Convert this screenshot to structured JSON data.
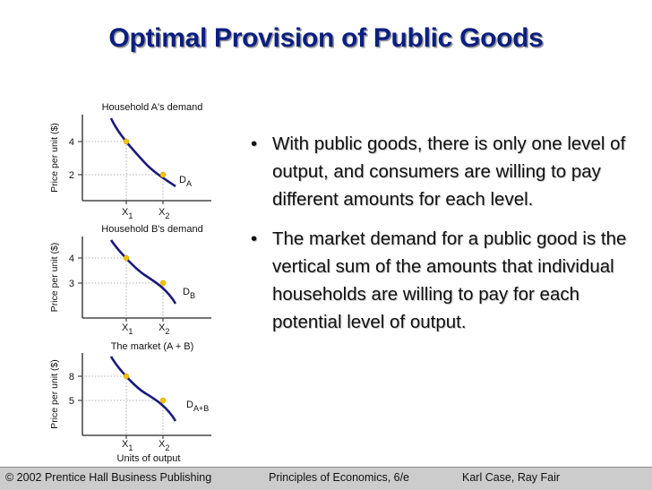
{
  "slide": {
    "title": "Optimal Provision of Public Goods",
    "bullets": [
      "With public goods, there is only one level of output, and consumers are willing to pay different amounts for each level.",
      "The market demand for a public good is the vertical sum of the amounts that individual households are willing to pay for each potential level of output."
    ],
    "bullet_symbol": "•"
  },
  "footer": {
    "publisher": "© 2002 Prentice Hall Business Publishing",
    "book": "Principles of Economics, 6/e",
    "authors": "Karl Case, Ray Fair"
  },
  "colors": {
    "title": "#0b1f80",
    "curve": "#1a1a7a",
    "points": "#f5c200",
    "footer_bg": "#cccccc"
  },
  "chart_data": [
    {
      "type": "line",
      "title": "Household A's demand",
      "ylabel": "Price per unit ($)",
      "xlabel": "",
      "x_ticks": [
        {
          "main": "X",
          "sub": "1"
        },
        {
          "main": "X",
          "sub": "2"
        }
      ],
      "y_ticks": [
        "4",
        "2"
      ],
      "points": [
        {
          "x": "X1",
          "y": 4
        },
        {
          "x": "X2",
          "y": 2
        }
      ],
      "curve_label": {
        "main": "D",
        "sub": "A"
      }
    },
    {
      "type": "line",
      "title": "Household B's demand",
      "ylabel": "Price per unit ($)",
      "xlabel": "",
      "x_ticks": [
        {
          "main": "X",
          "sub": "1"
        },
        {
          "main": "X",
          "sub": "2"
        }
      ],
      "y_ticks": [
        "4",
        "3"
      ],
      "points": [
        {
          "x": "X1",
          "y": 4
        },
        {
          "x": "X2",
          "y": 3
        }
      ],
      "curve_label": {
        "main": "D",
        "sub": "B"
      }
    },
    {
      "type": "line",
      "title": "The market (A + B)",
      "ylabel": "Price per unit ($)",
      "xlabel": "Units of output",
      "x_ticks": [
        {
          "main": "X",
          "sub": "1"
        },
        {
          "main": "X",
          "sub": "2"
        }
      ],
      "y_ticks": [
        "8",
        "5"
      ],
      "points": [
        {
          "x": "X1",
          "y": 8
        },
        {
          "x": "X2",
          "y": 5
        }
      ],
      "curve_label": {
        "main": "D",
        "sub": "A+B"
      }
    }
  ]
}
